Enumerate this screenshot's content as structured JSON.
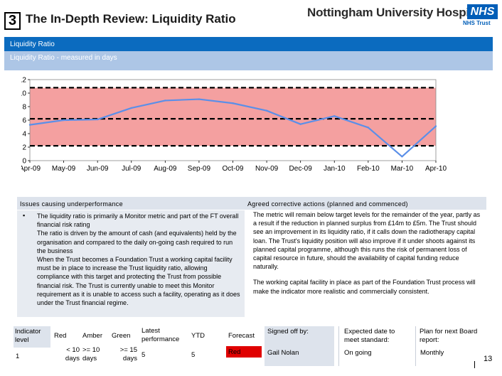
{
  "header": {
    "section_number": "3",
    "title": "The In-Depth Review: Liquidity Ratio",
    "org_name": "Nottingham University Hospitals",
    "logo_text": "NHS",
    "logo_subtext": "NHS Trust"
  },
  "banners": {
    "primary": "Liquidity Ratio",
    "secondary": "Liquidity Ratio - measured in days"
  },
  "chart_data": {
    "type": "line",
    "title": "",
    "xlabel": "",
    "ylabel": "",
    "categories": [
      "Apr-09",
      "May-09",
      "Jun-09",
      "Jul-09",
      "Aug-09",
      "Sep-09",
      "Oct-09",
      "Nov-09",
      "Dec-09",
      "Jan-10",
      "Feb-10",
      "Mar-10",
      "Apr-10"
    ],
    "series": [
      {
        "values": [
          5.3,
          6.0,
          6.1,
          7.8,
          8.9,
          9.1,
          8.5,
          7.4,
          5.4,
          6.6,
          4.9,
          0.6,
          5.1
        ]
      }
    ],
    "ylim": [
      0,
      12
    ],
    "yticks": [
      "0",
      "2",
      "4",
      "6",
      "8",
      "10",
      "12"
    ],
    "bands": [
      {
        "from": 0,
        "to": 2.2,
        "color": "#f4a0a0"
      },
      {
        "from": 2.2,
        "to": 6.2,
        "color": "#f4a0a0"
      },
      {
        "from": 6.2,
        "to": 10.8,
        "color": "#f4a0a0"
      }
    ],
    "thresholds": [
      2.2,
      6.2,
      10.8
    ],
    "line_color": "#5b8fe8",
    "grid": false,
    "legend": "none"
  },
  "issues": {
    "heading": "Issues causing underperformance",
    "bullet": "▪",
    "paragraphs": [
      "The liquidity ratio is primarily a Monitor metric and part of the FT overall financial risk rating",
      "The ratio is driven by the amount of cash (and equivalents) held by the organisation and compared to the daily on-going cash required to run the business",
      "When the Trust becomes a Foundation Trust a working capital facility must be in place to increase the Trust liquidity ratio, allowing compliance with this target and protecting the Trust from possible financial risk. The Trust is currently unable to meet this Monitor requirement as it is unable to access such a facility, operating as it does under the Trust financial regime."
    ]
  },
  "actions": {
    "heading": "Agreed corrective actions (planned and commenced)",
    "paragraphs": [
      "The metric will remain below target levels for the remainder of the year, partly as a result if the reduction in planned surplus from £14m to £5m. The Trust should see an improvement in its liquidity ratio, if it calls down the radiotherapy capital loan. The Trust's liquidity position will also improve if it under shoots against its planned capital programme, although this runs the risk of permanent loss of capital resource in future, should the availability of capital funding reduce naturally.",
      "The working capital facility in place as part of the Foundation Trust process will make the indicator more realistic and commercially consistent."
    ]
  },
  "table": {
    "headers": {
      "indicator_level": "Indicator level",
      "red": "Red",
      "amber": "Amber",
      "green": "Green",
      "latest": "Latest performance",
      "ytd": "YTD",
      "forecast": "Forecast",
      "signed_off": "Signed off by:",
      "expected": "Expected date to meet standard:",
      "plan": "Plan for next Board report:"
    },
    "row": {
      "indicator_level": "1",
      "red": "< 10 days",
      "amber": ">= 10 days",
      "green": ">= 15 days",
      "latest": "5",
      "ytd": "5",
      "forecast": "Red",
      "signed_off": "Gail Nolan",
      "expected": "On going",
      "plan": "Monthly"
    }
  },
  "colors": {
    "banner_dark": "#0b6bbf",
    "banner_light": "#adc6e6",
    "forecast_red": "#e00000",
    "nhs_blue": "#005eb8"
  },
  "page_number": "13"
}
